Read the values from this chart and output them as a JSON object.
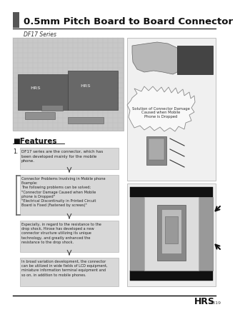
{
  "title": "0.5mm Pitch Board to Board Connector",
  "series_label": "DF17 Series",
  "bg_color": "#ffffff",
  "header_bar_color": "#555555",
  "header_line_color": "#000000",
  "features_title": "■Features",
  "feature_number": "1.",
  "text_box1": "DF17 series are the connector, which has\nbeen developed mainly for the mobile\nphone.",
  "text_box2": "Connector Problems Involving in Mobile phone\nExample:\nThe following problems can be solved;\n\"Connector Damage Caused when Mobile\nphone is Dropped\"\n\"Electrical Discontinuity in Printed Circuit\nBoard is Fixed (Fastened by screws)\"",
  "text_box3": "Especially, in regard to the resistance to the\ndrop shock, Hirose has developed a new\nconnector structure utilizing its unique\ntechnology, and greatly enhanced the\nresistance to the drop shock.",
  "text_box4": "In broad variation development, the connector\ncan be utilized in wide fields of LCD equipment,\nminiature information terminal equipment and\nso on, in addition to mobile phones.",
  "caption_right": "Solution of Connector Damage\nCaused when Mobile\nPhone is Dropped",
  "hrs_text": "HRS",
  "page_num": "A319",
  "text_box_color": "#d8d8d8",
  "arrow_color": "#444444",
  "photo_box_color": "#c8c8c8",
  "right_top_box_color": "#f0f0f0",
  "right_bot_box_color": "#eeeeee"
}
